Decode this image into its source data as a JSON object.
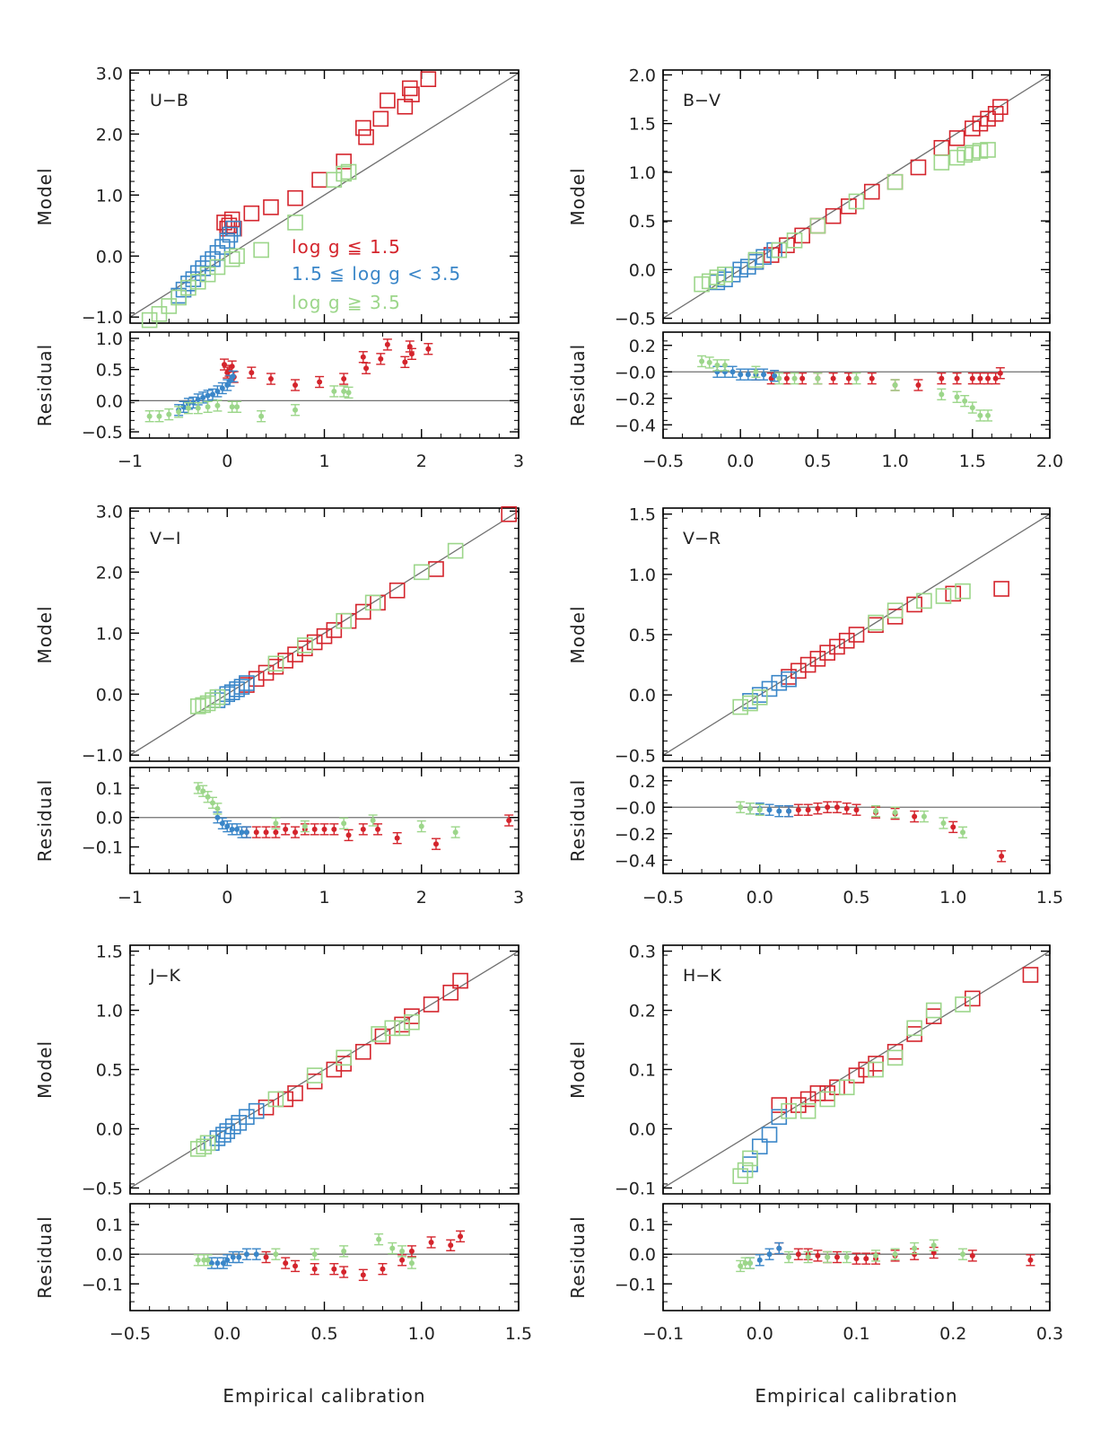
{
  "figure": {
    "colors": {
      "red": "#d4242c",
      "blue": "#3a86c8",
      "green": "#9cd68a",
      "axis": "#000000",
      "line": "#707070"
    },
    "legend": [
      "log g ≦ 1.5",
      "1.5 ≦ log g < 3.5",
      "log g ≧ 3.5"
    ],
    "model_ylabel": "Model",
    "residual_ylabel": "Residual",
    "xlabel": "Empirical calibration"
  },
  "chart_data": [
    {
      "type": "scatter",
      "label": "U−B",
      "xlim": [
        -1,
        3
      ],
      "ylim": [
        -1.1,
        3.05
      ],
      "xticks": [
        "−1",
        "0",
        "1",
        "2",
        "3"
      ],
      "xtick_values": [
        -1,
        0,
        1,
        2,
        3
      ],
      "yticks": [
        "−1.0",
        "0.0",
        "1.0",
        "2.0",
        "3.0"
      ],
      "ytick_values": [
        -1,
        0,
        1,
        2,
        3
      ],
      "residual_ylim": [
        -0.6,
        1.1
      ],
      "residual_yticks": [
        "−0.5",
        "0.0",
        "0.5",
        "1.0"
      ],
      "residual_ytick_values": [
        -0.5,
        0,
        0.5,
        1
      ],
      "series": [
        {
          "group": "red",
          "x": [
            -0.03,
            0.0,
            0.02,
            0.05,
            0.07,
            0.25,
            0.45,
            0.7,
            0.95,
            1.2,
            1.4,
            1.43,
            1.58,
            1.65,
            1.83,
            1.88,
            1.9,
            2.07
          ],
          "y": [
            0.55,
            0.45,
            0.5,
            0.6,
            0.45,
            0.7,
            0.8,
            0.95,
            1.25,
            1.55,
            2.1,
            1.95,
            2.25,
            2.55,
            2.45,
            2.75,
            2.65,
            2.9
          ],
          "resid": [
            0.58,
            0.45,
            0.48,
            0.55,
            0.38,
            0.45,
            0.35,
            0.25,
            0.3,
            0.35,
            0.7,
            0.52,
            0.67,
            0.9,
            0.62,
            0.87,
            0.75,
            0.83
          ]
        },
        {
          "group": "blue",
          "x": [
            -0.5,
            -0.45,
            -0.4,
            -0.35,
            -0.3,
            -0.25,
            -0.2,
            -0.15,
            -0.1,
            -0.05,
            0.0,
            0.03,
            0.06
          ],
          "y": [
            -0.65,
            -0.55,
            -0.45,
            -0.38,
            -0.28,
            -0.2,
            -0.12,
            -0.05,
            0.05,
            0.15,
            0.25,
            0.35,
            0.45
          ],
          "resid": [
            -0.15,
            -0.1,
            -0.05,
            -0.03,
            0.02,
            0.05,
            0.08,
            0.1,
            0.15,
            0.2,
            0.25,
            0.32,
            0.39
          ]
        },
        {
          "group": "green",
          "x": [
            -0.8,
            -0.7,
            -0.6,
            -0.5,
            -0.4,
            -0.3,
            -0.2,
            -0.1,
            0.05,
            0.1,
            0.35,
            0.7,
            1.1,
            1.2,
            1.25
          ],
          "y": [
            -1.05,
            -0.95,
            -0.82,
            -0.68,
            -0.52,
            -0.42,
            -0.3,
            -0.18,
            -0.05,
            0.0,
            0.1,
            0.55,
            1.25,
            1.35,
            1.38
          ],
          "resid": [
            -0.25,
            -0.25,
            -0.22,
            -0.18,
            -0.12,
            -0.12,
            -0.1,
            -0.08,
            -0.1,
            -0.1,
            -0.25,
            -0.15,
            0.15,
            0.15,
            0.13
          ]
        }
      ]
    },
    {
      "type": "scatter",
      "label": "B−V",
      "xlim": [
        -0.5,
        2.0
      ],
      "ylim": [
        -0.55,
        2.05
      ],
      "xticks": [
        "−0.5",
        "0.0",
        "0.5",
        "1.0",
        "1.5",
        "2.0"
      ],
      "xtick_values": [
        -0.5,
        0,
        0.5,
        1,
        1.5,
        2
      ],
      "yticks": [
        "−0.5",
        "0.0",
        "0.5",
        "1.0",
        "1.5",
        "2.0"
      ],
      "ytick_values": [
        -0.5,
        0,
        0.5,
        1,
        1.5,
        2
      ],
      "residual_ylim": [
        -0.5,
        0.3
      ],
      "residual_yticks": [
        "−0.4",
        "−0.2",
        "−0.0",
        "0.2"
      ],
      "residual_ytick_values": [
        -0.4,
        -0.2,
        0,
        0.2
      ],
      "series": [
        {
          "group": "red",
          "x": [
            0.1,
            0.2,
            0.3,
            0.4,
            0.5,
            0.6,
            0.7,
            0.85,
            1.0,
            1.15,
            1.3,
            1.4,
            1.5,
            1.55,
            1.6,
            1.65,
            1.68
          ],
          "y": [
            0.08,
            0.15,
            0.25,
            0.35,
            0.45,
            0.55,
            0.65,
            0.8,
            0.9,
            1.05,
            1.25,
            1.35,
            1.45,
            1.5,
            1.55,
            1.6,
            1.67
          ],
          "resid": [
            -0.02,
            -0.05,
            -0.05,
            -0.05,
            -0.05,
            -0.05,
            -0.05,
            -0.05,
            -0.1,
            -0.1,
            -0.05,
            -0.05,
            -0.05,
            -0.05,
            -0.05,
            -0.05,
            -0.01
          ]
        },
        {
          "group": "blue",
          "x": [
            -0.15,
            -0.1,
            -0.05,
            0.0,
            0.05,
            0.1,
            0.15,
            0.22
          ],
          "y": [
            -0.13,
            -0.1,
            -0.05,
            0.0,
            0.03,
            0.08,
            0.13,
            0.2
          ],
          "resid": [
            0.0,
            0.0,
            0.0,
            -0.02,
            -0.02,
            -0.02,
            -0.02,
            -0.03
          ]
        },
        {
          "group": "green",
          "x": [
            -0.25,
            -0.2,
            -0.15,
            -0.1,
            0.1,
            0.25,
            0.35,
            0.5,
            0.75,
            1.0,
            1.3,
            1.4,
            1.45,
            1.5,
            1.55,
            1.6
          ],
          "y": [
            -0.15,
            -0.12,
            -0.08,
            -0.05,
            0.1,
            0.2,
            0.3,
            0.45,
            0.7,
            0.9,
            1.1,
            1.15,
            1.18,
            1.2,
            1.22,
            1.23
          ],
          "resid": [
            0.08,
            0.07,
            0.05,
            0.05,
            0.0,
            -0.05,
            -0.05,
            -0.05,
            -0.05,
            -0.1,
            -0.17,
            -0.19,
            -0.22,
            -0.27,
            -0.33,
            -0.33
          ]
        }
      ]
    },
    {
      "type": "scatter",
      "label": "V−I",
      "xlim": [
        -1,
        3
      ],
      "ylim": [
        -1.1,
        3.05
      ],
      "xticks": [
        "−1",
        "0",
        "1",
        "2",
        "3"
      ],
      "xtick_values": [
        -1,
        0,
        1,
        2,
        3
      ],
      "yticks": [
        "−1.0",
        "0.0",
        "1.0",
        "2.0",
        "3.0"
      ],
      "ytick_values": [
        -1,
        0,
        1,
        2,
        3
      ],
      "residual_ylim": [
        -0.19,
        0.17
      ],
      "residual_yticks": [
        "−0.1",
        "0.0",
        "0.1"
      ],
      "residual_ytick_values": [
        -0.1,
        0,
        0.1
      ],
      "series": [
        {
          "group": "red",
          "x": [
            0.2,
            0.3,
            0.4,
            0.5,
            0.6,
            0.7,
            0.8,
            0.9,
            1.0,
            1.1,
            1.25,
            1.4,
            1.55,
            1.75,
            2.15,
            2.9
          ],
          "y": [
            0.15,
            0.25,
            0.35,
            0.45,
            0.55,
            0.65,
            0.75,
            0.85,
            0.95,
            1.05,
            1.2,
            1.35,
            1.5,
            1.7,
            2.05,
            2.95
          ],
          "resid": [
            -0.05,
            -0.05,
            -0.05,
            -0.05,
            -0.04,
            -0.05,
            -0.04,
            -0.04,
            -0.04,
            -0.04,
            -0.06,
            -0.04,
            -0.04,
            -0.07,
            -0.09,
            -0.01
          ]
        },
        {
          "group": "blue",
          "x": [
            -0.1,
            -0.05,
            0.0,
            0.05,
            0.1,
            0.15,
            0.2
          ],
          "y": [
            -0.1,
            -0.05,
            0.0,
            0.03,
            0.08,
            0.12,
            0.18
          ],
          "resid": [
            0.0,
            -0.02,
            -0.03,
            -0.04,
            -0.04,
            -0.05,
            -0.05
          ]
        },
        {
          "group": "green",
          "x": [
            -0.3,
            -0.25,
            -0.2,
            -0.15,
            -0.1,
            0.5,
            0.8,
            1.2,
            1.5,
            2.0,
            2.35
          ],
          "y": [
            -0.2,
            -0.18,
            -0.15,
            -0.1,
            -0.05,
            0.5,
            0.8,
            1.2,
            1.5,
            2.0,
            2.35
          ],
          "resid": [
            0.1,
            0.09,
            0.07,
            0.05,
            0.03,
            -0.02,
            -0.03,
            -0.02,
            -0.01,
            -0.03,
            -0.05
          ]
        }
      ]
    },
    {
      "type": "scatter",
      "label": "V−R",
      "xlim": [
        -0.5,
        1.5
      ],
      "ylim": [
        -0.55,
        1.55
      ],
      "xticks": [
        "−0.5",
        "0.0",
        "0.5",
        "1.0",
        "1.5"
      ],
      "xtick_values": [
        -0.5,
        0,
        0.5,
        1,
        1.5
      ],
      "yticks": [
        "−0.5",
        "0.0",
        "0.5",
        "1.0",
        "1.5"
      ],
      "ytick_values": [
        -0.5,
        0,
        0.5,
        1,
        1.5
      ],
      "residual_ylim": [
        -0.5,
        0.3
      ],
      "residual_yticks": [
        "−0.4",
        "−0.2",
        "−0.0",
        "0.2"
      ],
      "residual_ytick_values": [
        -0.4,
        -0.2,
        0,
        0.2
      ],
      "series": [
        {
          "group": "red",
          "x": [
            0.15,
            0.2,
            0.25,
            0.3,
            0.35,
            0.4,
            0.45,
            0.5,
            0.6,
            0.7,
            0.8,
            1.0,
            1.25
          ],
          "y": [
            0.15,
            0.2,
            0.25,
            0.3,
            0.35,
            0.4,
            0.45,
            0.5,
            0.58,
            0.65,
            0.75,
            0.84,
            0.88
          ],
          "resid": [
            -0.03,
            -0.02,
            -0.02,
            -0.01,
            0.0,
            0.0,
            -0.01,
            -0.02,
            -0.04,
            -0.05,
            -0.07,
            -0.15,
            -0.37
          ]
        },
        {
          "group": "blue",
          "x": [
            -0.05,
            0.0,
            0.05,
            0.1,
            0.15
          ],
          "y": [
            -0.05,
            0.0,
            0.05,
            0.1,
            0.13
          ],
          "resid": [
            -0.01,
            -0.01,
            -0.02,
            -0.03,
            -0.03
          ]
        },
        {
          "group": "green",
          "x": [
            -0.1,
            -0.05,
            0.0,
            0.6,
            0.7,
            0.85,
            0.95,
            1.05
          ],
          "y": [
            -0.1,
            -0.07,
            -0.02,
            0.6,
            0.7,
            0.78,
            0.82,
            0.86
          ],
          "resid": [
            0.0,
            -0.01,
            -0.02,
            -0.03,
            -0.04,
            -0.07,
            -0.12,
            -0.19
          ]
        }
      ]
    },
    {
      "type": "scatter",
      "label": "J−K",
      "xlim": [
        -0.5,
        1.5
      ],
      "ylim": [
        -0.55,
        1.55
      ],
      "xticks": [
        "−0.5",
        "0.0",
        "0.5",
        "1.0",
        "1.5"
      ],
      "xtick_values": [
        -0.5,
        0,
        0.5,
        1,
        1.5
      ],
      "yticks": [
        "−0.5",
        "0.0",
        "0.5",
        "1.0",
        "1.5"
      ],
      "ytick_values": [
        -0.5,
        0,
        0.5,
        1,
        1.5
      ],
      "residual_ylim": [
        -0.19,
        0.17
      ],
      "residual_yticks": [
        "−0.1",
        "0.0",
        "0.1"
      ],
      "residual_ytick_values": [
        -0.1,
        0,
        0.1
      ],
      "series": [
        {
          "group": "red",
          "x": [
            0.2,
            0.3,
            0.35,
            0.45,
            0.55,
            0.6,
            0.7,
            0.8,
            0.9,
            0.95,
            1.05,
            1.15,
            1.2
          ],
          "y": [
            0.18,
            0.25,
            0.3,
            0.4,
            0.5,
            0.55,
            0.65,
            0.78,
            0.88,
            0.95,
            1.05,
            1.15,
            1.25
          ],
          "resid": [
            -0.01,
            -0.03,
            -0.04,
            -0.05,
            -0.05,
            -0.06,
            -0.07,
            -0.05,
            -0.02,
            0.01,
            0.04,
            0.03,
            0.06
          ]
        },
        {
          "group": "blue",
          "x": [
            -0.08,
            -0.05,
            -0.02,
            0.0,
            0.03,
            0.06,
            0.1,
            0.15
          ],
          "y": [
            -0.12,
            -0.08,
            -0.05,
            -0.02,
            0.02,
            0.05,
            0.1,
            0.15
          ],
          "resid": [
            -0.03,
            -0.03,
            -0.03,
            -0.02,
            -0.01,
            -0.01,
            0.0,
            0.0
          ]
        },
        {
          "group": "green",
          "x": [
            -0.15,
            -0.12,
            -0.1,
            0.25,
            0.45,
            0.6,
            0.78,
            0.85,
            0.9,
            0.95
          ],
          "y": [
            -0.17,
            -0.15,
            -0.12,
            0.25,
            0.45,
            0.6,
            0.8,
            0.85,
            0.85,
            0.9
          ],
          "resid": [
            -0.02,
            -0.02,
            -0.02,
            0.0,
            0.0,
            0.01,
            0.05,
            0.02,
            0.01,
            -0.03
          ]
        }
      ]
    },
    {
      "type": "scatter",
      "label": "H−K",
      "xlim": [
        -0.1,
        0.3
      ],
      "ylim": [
        -0.11,
        0.31
      ],
      "xticks": [
        "−0.1",
        "0.0",
        "0.1",
        "0.2",
        "0.3"
      ],
      "xtick_values": [
        -0.1,
        0,
        0.1,
        0.2,
        0.3
      ],
      "yticks": [
        "−0.1",
        "0.0",
        "0.1",
        "0.2",
        "0.3"
      ],
      "ytick_values": [
        -0.1,
        0,
        0.1,
        0.2,
        0.3
      ],
      "residual_ylim": [
        -0.19,
        0.17
      ],
      "residual_yticks": [
        "−0.1",
        "0.0",
        "0.1"
      ],
      "residual_ytick_values": [
        -0.1,
        0,
        0.1
      ],
      "series": [
        {
          "group": "red",
          "x": [
            0.02,
            0.04,
            0.05,
            0.06,
            0.07,
            0.08,
            0.1,
            0.11,
            0.12,
            0.14,
            0.16,
            0.18,
            0.22,
            0.28
          ],
          "y": [
            0.04,
            0.04,
            0.05,
            0.06,
            0.06,
            0.07,
            0.09,
            0.1,
            0.11,
            0.13,
            0.16,
            0.19,
            0.22,
            0.26
          ],
          "resid": [
            0.02,
            0.0,
            0.0,
            -0.005,
            -0.01,
            -0.01,
            -0.015,
            -0.015,
            -0.015,
            -0.005,
            0.0,
            0.005,
            -0.005,
            -0.02
          ]
        },
        {
          "group": "blue",
          "x": [
            -0.01,
            0.0,
            0.01,
            0.02
          ],
          "y": [
            -0.06,
            -0.03,
            -0.01,
            0.02
          ],
          "resid": [
            -0.03,
            -0.02,
            0.0,
            0.02
          ]
        },
        {
          "group": "green",
          "x": [
            -0.02,
            -0.015,
            -0.01,
            0.03,
            0.05,
            0.07,
            0.09,
            0.12,
            0.14,
            0.16,
            0.18,
            0.21
          ],
          "y": [
            -0.08,
            -0.07,
            -0.05,
            0.03,
            0.03,
            0.05,
            0.07,
            0.1,
            0.12,
            0.17,
            0.2,
            0.21
          ],
          "resid": [
            -0.04,
            -0.03,
            -0.03,
            -0.01,
            -0.01,
            -0.01,
            -0.01,
            -0.005,
            0.0,
            0.02,
            0.03,
            0.0
          ]
        }
      ]
    }
  ]
}
